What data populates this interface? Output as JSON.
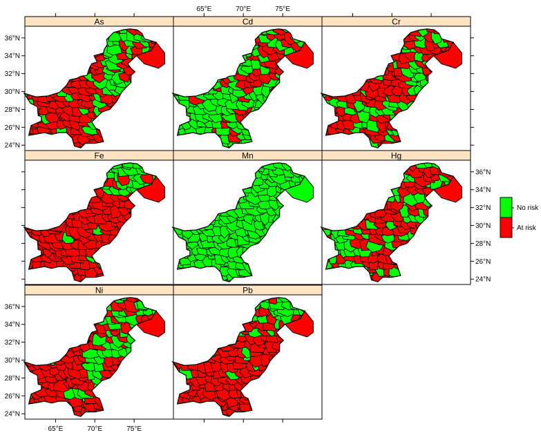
{
  "figure": {
    "panels": [
      {
        "id": "As",
        "title": "As",
        "pattern": "as"
      },
      {
        "id": "Cd",
        "title": "Cd",
        "pattern": "cd"
      },
      {
        "id": "Cr",
        "title": "Cr",
        "pattern": "cr"
      },
      {
        "id": "Fe",
        "title": "Fe",
        "pattern": "fe"
      },
      {
        "id": "Mn",
        "title": "Mn",
        "pattern": "mn"
      },
      {
        "id": "Hg",
        "title": "Hg",
        "pattern": "hg"
      },
      {
        "id": "Ni",
        "title": "Ni",
        "pattern": "ni"
      },
      {
        "id": "Pb",
        "title": "Pb",
        "pattern": "pb"
      }
    ],
    "x_ticks": [
      "65°E",
      "70°E",
      "75°E"
    ],
    "y_ticks": [
      "24°N",
      "26°N",
      "28°N",
      "30°N",
      "32°N",
      "34°N",
      "36°N"
    ],
    "legend": [
      {
        "label": "No risk",
        "color": "#00ff00"
      },
      {
        "label": "At risk",
        "color": "#ff0000"
      }
    ],
    "colors": {
      "no_risk": "#00ff00",
      "at_risk": "#ff0000",
      "strip": "#ffe4c4",
      "border": "#000000"
    }
  }
}
